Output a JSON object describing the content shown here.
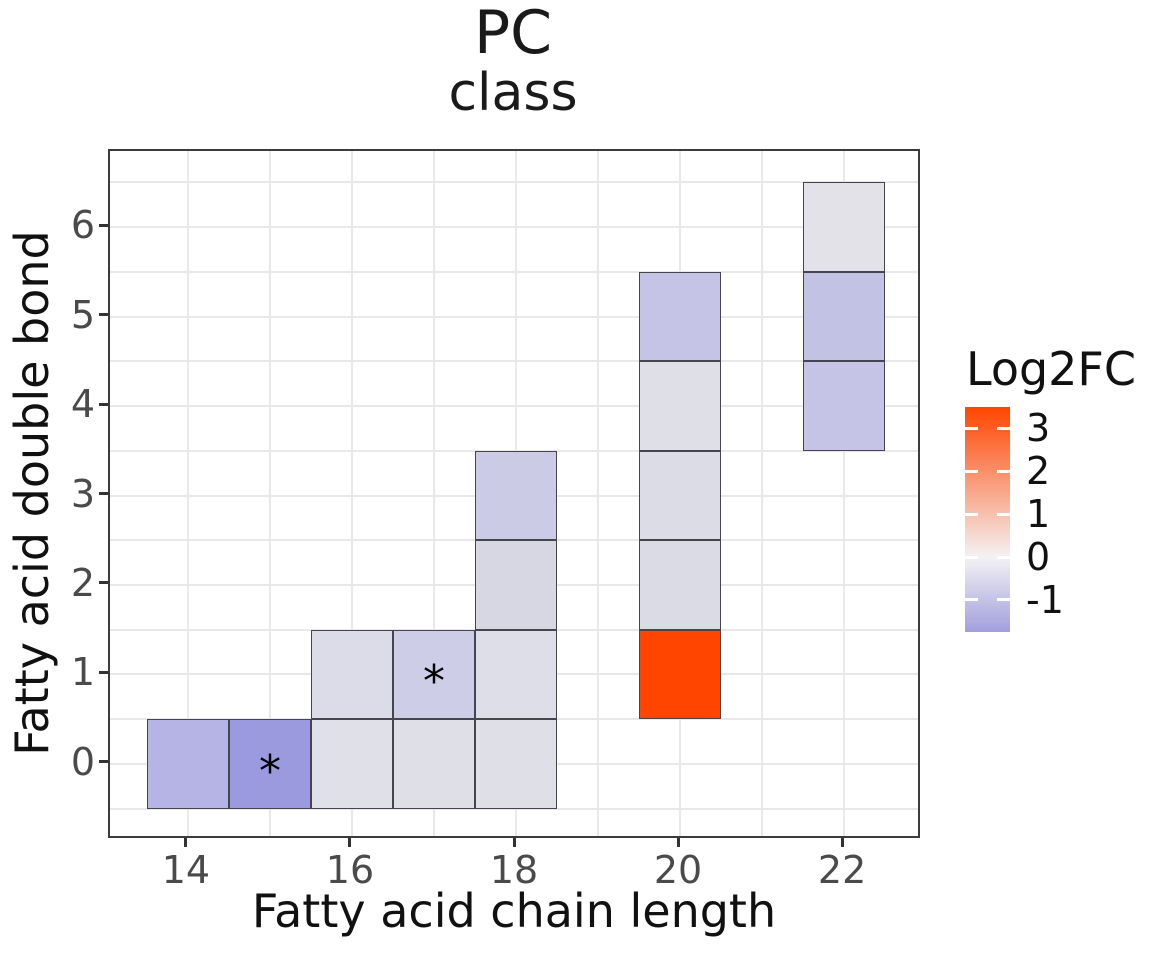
{
  "chart_data": {
    "type": "heatmap",
    "title": "PC",
    "subtitle": "class",
    "xlabel": "Fatty acid chain length",
    "ylabel": "Fatty acid double bond",
    "x_ticks": [
      14,
      16,
      18,
      20,
      22
    ],
    "y_ticks": [
      0,
      1,
      2,
      3,
      4,
      5,
      6
    ],
    "xlim": [
      13.05,
      22.95
    ],
    "ylim": [
      -0.85,
      6.85
    ],
    "grid": {
      "x_lines_every": 1,
      "y_lines_every": 0.5,
      "background": "#ffffff",
      "gridline_color": "#e8e8eb"
    },
    "legend": {
      "title": "Log2FC",
      "position": "right",
      "ticks": [
        3,
        2,
        1,
        0,
        -1
      ],
      "domain": [
        -1.75,
        3.5
      ],
      "colors": {
        "high": "#ff4500",
        "mid": "#f4f2f4",
        "low": "#a19fdc"
      }
    },
    "star_symbol": "*",
    "tiles": [
      {
        "x": 14,
        "y": 0,
        "log2fc": -1.2,
        "color": "#b5b4e4",
        "star": false
      },
      {
        "x": 15,
        "y": 0,
        "log2fc": -1.75,
        "color": "#9b9ade",
        "star": true
      },
      {
        "x": 16,
        "y": 0,
        "log2fc": -0.3,
        "color": "#e0e0e8",
        "star": false
      },
      {
        "x": 17,
        "y": 0,
        "log2fc": -0.3,
        "color": "#dfdfe7",
        "star": false
      },
      {
        "x": 18,
        "y": 0,
        "log2fc": -0.3,
        "color": "#dfdfe7",
        "star": false
      },
      {
        "x": 16,
        "y": 1,
        "log2fc": -0.45,
        "color": "#dcdce8",
        "star": false
      },
      {
        "x": 17,
        "y": 1,
        "log2fc": -0.8,
        "color": "#cdcde8",
        "star": true
      },
      {
        "x": 18,
        "y": 1,
        "log2fc": -0.35,
        "color": "#dedee8",
        "star": false
      },
      {
        "x": 18,
        "y": 2,
        "log2fc": -0.55,
        "color": "#d7d7e3",
        "star": false
      },
      {
        "x": 18,
        "y": 3,
        "log2fc": -0.85,
        "color": "#cbcbe6",
        "star": false
      },
      {
        "x": 20,
        "y": 1,
        "log2fc": 3.5,
        "color": "#ff4500",
        "star": false
      },
      {
        "x": 20,
        "y": 2,
        "log2fc": -0.45,
        "color": "#dbdbe6",
        "star": false
      },
      {
        "x": 20,
        "y": 3,
        "log2fc": -0.45,
        "color": "#dcdce6",
        "star": false
      },
      {
        "x": 20,
        "y": 4,
        "log2fc": -0.3,
        "color": "#dfe0e7",
        "star": false
      },
      {
        "x": 20,
        "y": 5,
        "log2fc": -1.0,
        "color": "#c5c4e6",
        "star": false
      },
      {
        "x": 22,
        "y": 4,
        "log2fc": -1.0,
        "color": "#c5c4e6",
        "star": false
      },
      {
        "x": 22,
        "y": 5,
        "log2fc": -1.05,
        "color": "#c2c2e4",
        "star": false
      },
      {
        "x": 22,
        "y": 6,
        "log2fc": -0.25,
        "color": "#e2e2e8",
        "star": false
      }
    ]
  }
}
